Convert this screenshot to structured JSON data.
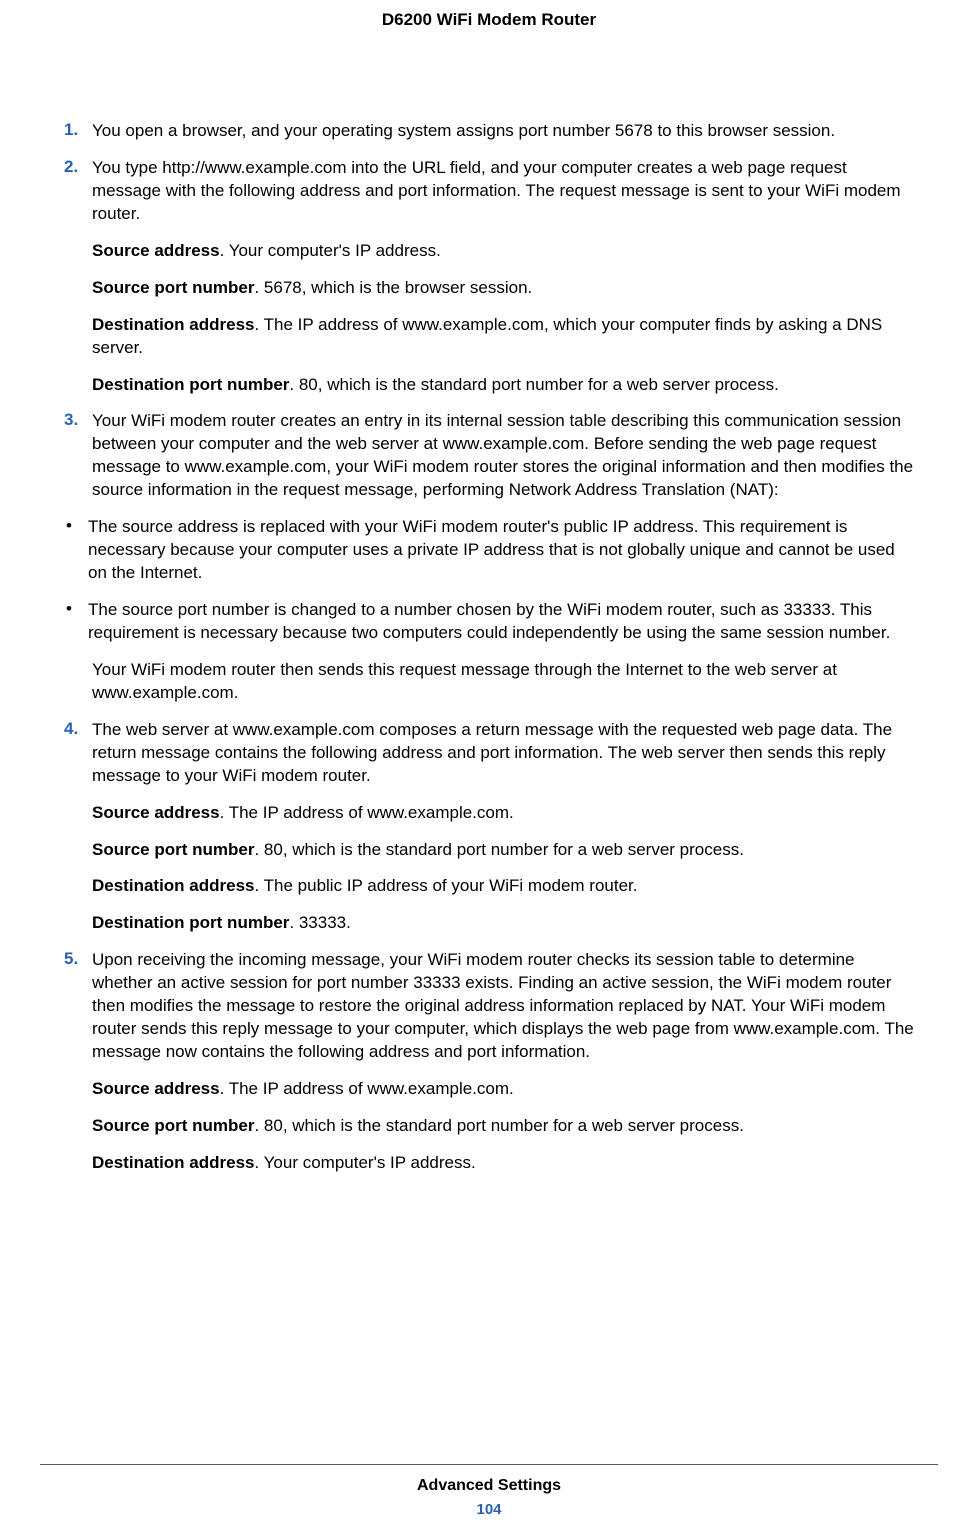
{
  "header": {
    "title": "D6200 WiFi Modem Router"
  },
  "steps": [
    {
      "num": "1.",
      "text": "You open a browser, and your operating system assigns port number 5678 to this browser session."
    },
    {
      "num": "2.",
      "text": "You type http://www.example.com into the URL field, and your computer creates a web page request message with the following address and port information. The request message is sent to your WiFi modem router.",
      "defs": [
        {
          "term": "Source address",
          "desc": ". Your computer's IP address."
        },
        {
          "term": "Source port number",
          "desc": ". 5678, which is the browser session."
        },
        {
          "term": "Destination address",
          "desc": ". The IP address of www.example.com, which your computer finds by asking a DNS server."
        },
        {
          "term": "Destination port number",
          "desc": ". 80, which is the standard port number for a web server process."
        }
      ]
    },
    {
      "num": "3.",
      "text": "Your WiFi modem router creates an entry in its internal session table describing this communication session between your computer and the web server at www.example.com. Before sending the web page request message to www.example.com, your WiFi modem router stores the original information and then modifies the source information in the request message, performing Network Address Translation (NAT):",
      "bullets": [
        "The source address is replaced with your WiFi modem router's public IP address. This requirement is necessary because your computer uses a private IP address that is not globally unique and cannot be used on the Internet.",
        "The source port number is changed to a number chosen by the WiFi modem router, such as 33333. This requirement is necessary because two computers could independently be using the same session number."
      ],
      "tail": "Your WiFi modem router then sends this request message through the Internet to the web server at www.example.com."
    },
    {
      "num": "4.",
      "text": "The web server at www.example.com composes a return message with the requested web page data. The return message contains the following address and port information. The web server then sends this reply message to your WiFi modem router.",
      "defs": [
        {
          "term": "Source address",
          "desc": ". The IP address of www.example.com."
        },
        {
          "term": "Source port number",
          "desc": ". 80, which is the standard port number for a web server process."
        },
        {
          "term": "Destination address",
          "desc": ". The public IP address of your WiFi modem router."
        },
        {
          "term": "Destination port number",
          "desc": ". 33333."
        }
      ]
    },
    {
      "num": "5.",
      "text": "Upon receiving the incoming message, your WiFi modem router checks its session table to determine whether an active session for port number 33333 exists. Finding an active session, the WiFi modem router then modifies the message to restore the original address information replaced by NAT. Your WiFi modem router sends this reply message to your computer, which displays the web page from www.example.com. The message now contains the following address and port information.",
      "defs": [
        {
          "term": "Source address",
          "desc": ". The IP address of www.example.com."
        },
        {
          "term": "Source port number",
          "desc": ". 80, which is the standard port number for a web server process."
        },
        {
          "term": "Destination address",
          "desc": ". Your computer's IP address."
        }
      ]
    }
  ],
  "footer": {
    "section": "Advanced Settings",
    "page": "104"
  },
  "colors": {
    "accent": "#2a5fb5",
    "text": "#000000",
    "bg": "#ffffff",
    "rule": "#5b5b5b"
  }
}
